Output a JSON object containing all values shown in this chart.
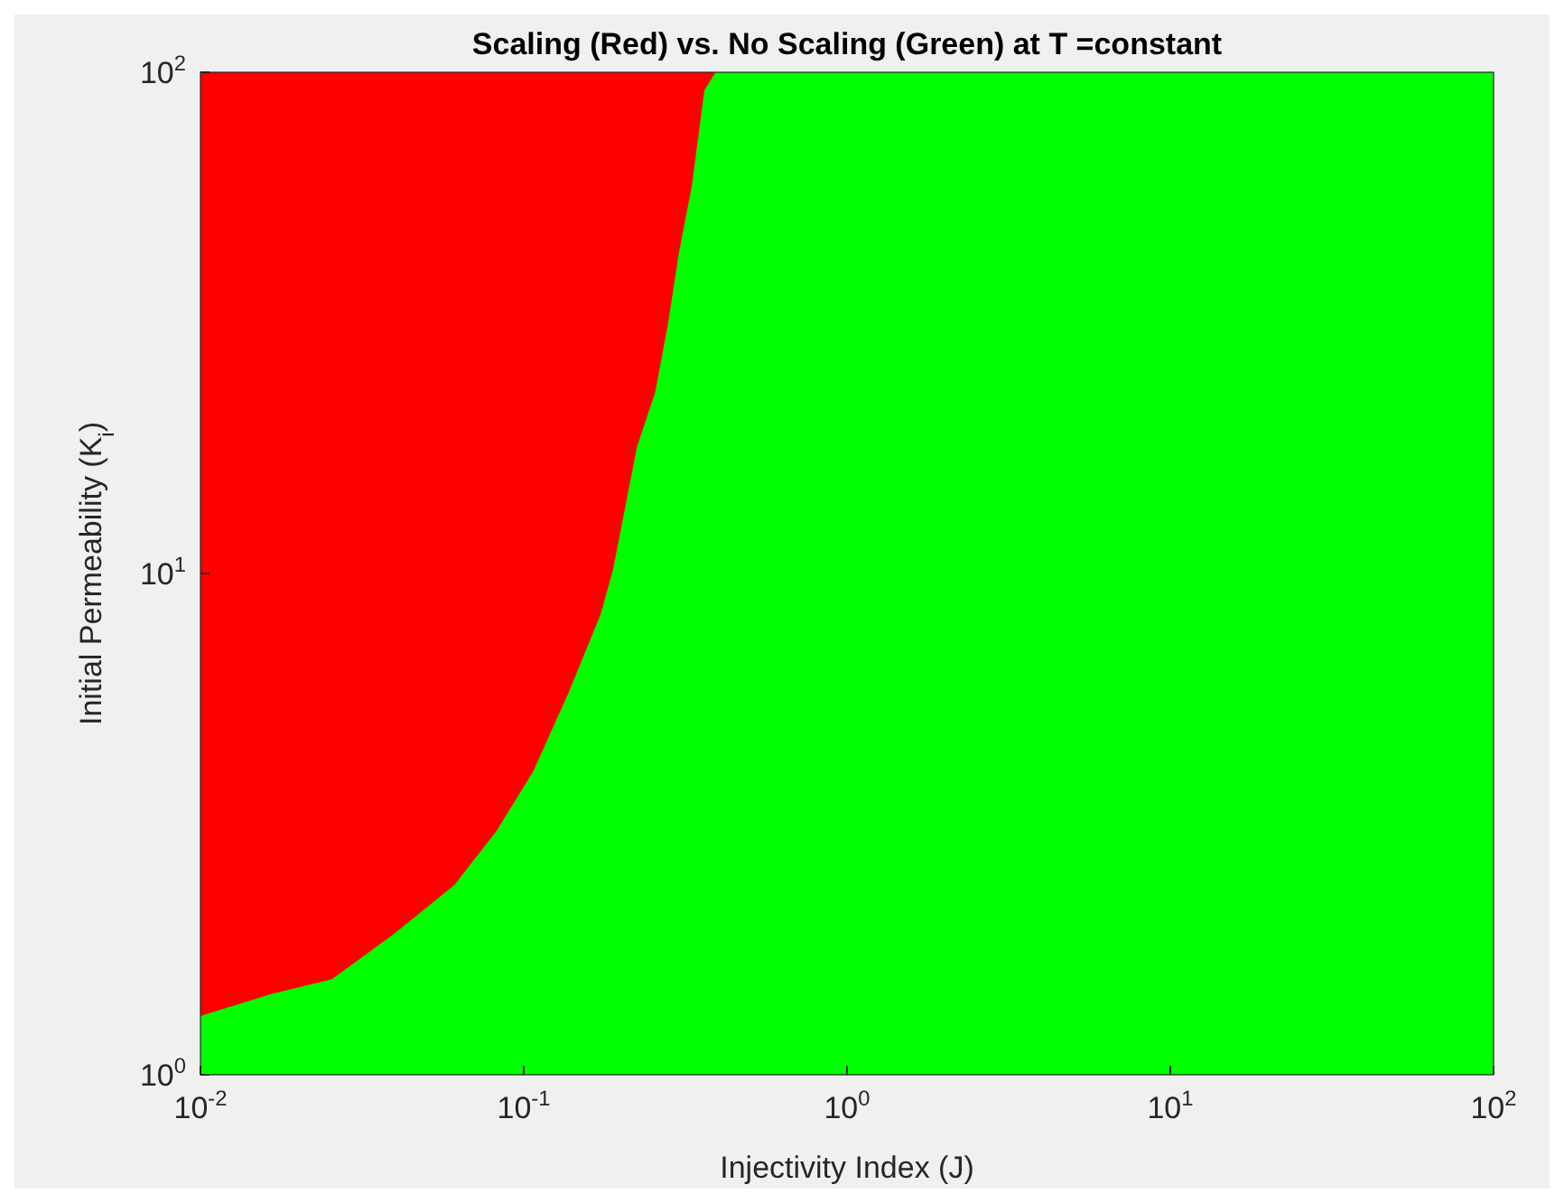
{
  "chart_data": {
    "type": "area",
    "title": "Scaling (Red) vs. No Scaling (Green) at T =constant",
    "xlabel": "Injectivity Index (J)",
    "ylabel": "Initial Permeability (K$_{i}$)",
    "log": "xy",
    "xlim": [
      0.01,
      100
    ],
    "ylim": [
      1,
      100
    ],
    "xticks": [
      {
        "value": 0.01,
        "label": "10$^{-2}$"
      },
      {
        "value": 0.1,
        "label": "10$^{-1}$"
      },
      {
        "value": 1,
        "label": "10$^{0}$"
      },
      {
        "value": 10,
        "label": "10$^{1}$"
      },
      {
        "value": 100,
        "label": "10$^{2}$"
      }
    ],
    "yticks": [
      {
        "value": 1,
        "label": "10$^{0}$"
      },
      {
        "value": 10,
        "label": "10$^{1}$"
      },
      {
        "value": 100,
        "label": "10$^{2}$"
      }
    ],
    "series": [
      {
        "color": "#ff0000",
        "x": [
          0.01,
          0.392
        ],
        "values": [
          100,
          100
        ]
      },
      {
        "color": "#00ff00",
        "x": [
          0.01,
          0.0166,
          0.0255,
          0.0397,
          0.061,
          0.0822,
          0.107,
          0.138,
          0.173,
          0.189,
          0.224,
          0.255,
          0.279,
          0.302,
          0.331,
          0.362,
          0.392,
          100
        ],
        "values": [
          1.31,
          1.45,
          1.55,
          1.91,
          2.39,
          3.06,
          4.03,
          5.81,
          8.3,
          10.2,
          17.9,
          23.0,
          31.3,
          43.6,
          59.3,
          92,
          100,
          100
        ]
      }
    ]
  }
}
